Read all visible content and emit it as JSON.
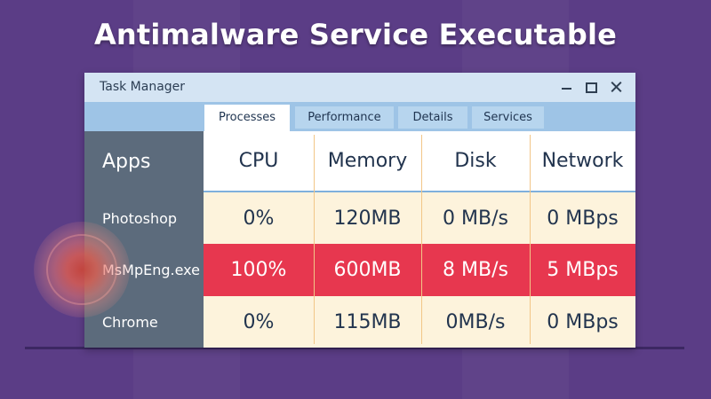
{
  "headline": "Antimalware Service Executable",
  "window": {
    "title": "Task Manager",
    "controls": [
      "minimize",
      "maximize",
      "close"
    ]
  },
  "tabs": [
    {
      "label": "Processes",
      "active": true
    },
    {
      "label": "Performance",
      "active": false
    },
    {
      "label": "Details",
      "active": false
    },
    {
      "label": "Services",
      "active": false
    }
  ],
  "table": {
    "columns": [
      "Apps",
      "CPU",
      "Memory",
      "Disk",
      "Network"
    ],
    "rows": [
      {
        "app": "Photoshop",
        "cpu": "0%",
        "memory": "120MB",
        "disk": "0 MB/s",
        "network": "0 MBps"
      },
      {
        "app": "MsMpEng.exe",
        "cpu": "100%",
        "memory": "600MB",
        "disk": "8 MB/s",
        "network": "5 MBps",
        "highlighted": true
      },
      {
        "app": "Chrome",
        "cpu": "0%",
        "memory": "115MB",
        "disk": "0MB/s",
        "network": "0 MBps"
      }
    ]
  },
  "colors": {
    "background": "#5b3d86",
    "highlight_row": "#e7374f",
    "row_fill": "#fdf3dc",
    "sidebar": "#5c6b7c",
    "tab_bar": "#9ec4e6",
    "title_bar": "#d4e4f3"
  }
}
